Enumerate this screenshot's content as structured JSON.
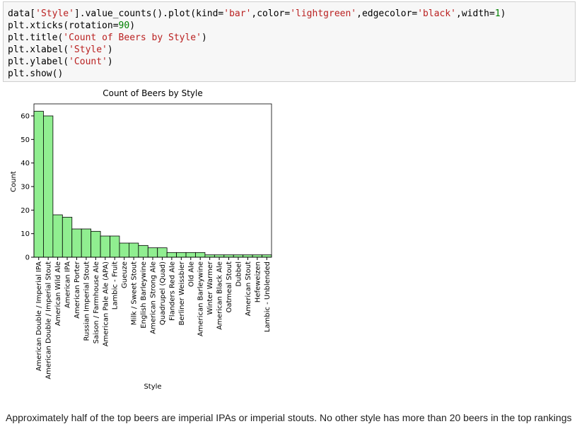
{
  "code": {
    "lines": [
      "data['Style'].value_counts().plot(kind='bar',color='lightgreen',edgecolor='black',width=1)",
      "plt.xticks(rotation=90)",
      "plt.title('Count of Beers by Style')",
      "plt.xlabel('Style')",
      "plt.ylabel('Count')",
      "plt.show()"
    ]
  },
  "chart_data": {
    "type": "bar",
    "title": "Count of Beers by Style",
    "x_label": "Style",
    "y_label": "Count",
    "categories": [
      "American Double / Imperial IPA",
      "American Double / Imperial Stout",
      "American Wild Ale",
      "American IPA",
      "American Porter",
      "Russian Imperial Stout",
      "Saison / Farmhouse Ale",
      "American Pale Ale (APA)",
      "Lambic - Fruit",
      "Gueuze",
      "Milk / Sweet Stout",
      "English Barleywine",
      "American Strong Ale",
      "Quadrupel (Quad)",
      "Flanders Red Ale",
      "Berliner Weissbier",
      "Old Ale",
      "American Barleywine",
      "Winter Warmer",
      "American Black Ale",
      "Oatmeal Stout",
      "Dubbel",
      "American Stout",
      "Hefeweizen",
      "Lambic - Unblended"
    ],
    "values": [
      62,
      60,
      18,
      17,
      12,
      12,
      11,
      9,
      9,
      6,
      6,
      5,
      4,
      4,
      2,
      2,
      2,
      2,
      1,
      1,
      1,
      1,
      1,
      1,
      1
    ],
    "color": "#90ee90",
    "edgecolor": "#000000",
    "ylim": [
      0,
      65.1
    ],
    "yticks": [
      0,
      10,
      20,
      30,
      40,
      50,
      60
    ]
  },
  "note": "Approximately half of the top beers are imperial IPAs or imperial stouts. No other style has more than 20 beers in the top rankings"
}
